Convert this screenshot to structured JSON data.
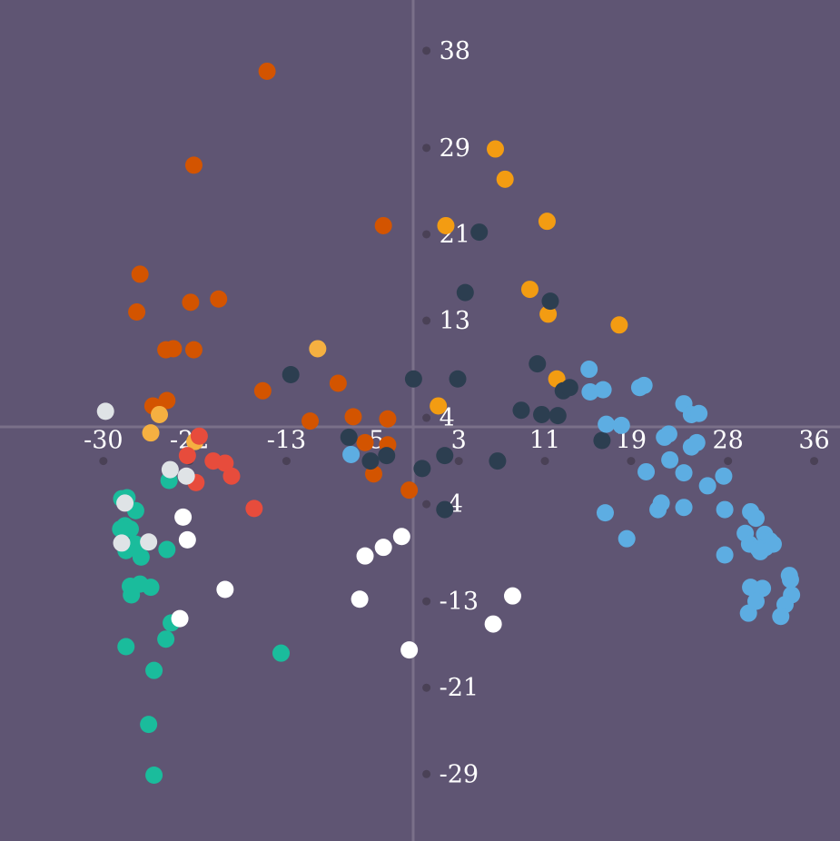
{
  "chart_data": {
    "type": "scatter",
    "title": "",
    "xlabel": "",
    "ylabel": "",
    "xlim": [
      -39.6,
      38.4
    ],
    "ylim": [
      -35.2,
      42.7
    ],
    "x_ticks": [
      -30,
      -22,
      -13,
      -5,
      3,
      11,
      19,
      28,
      36
    ],
    "y_ticks": [
      38,
      29,
      21,
      13,
      4,
      -4,
      -13,
      -21,
      -29
    ],
    "x_tick_labels": [
      "-30",
      "-22",
      "-13",
      "-5",
      "3",
      "11",
      "19",
      "28",
      "36"
    ],
    "y_tick_labels": [
      "38",
      "29",
      "21",
      "13",
      "4",
      "-4",
      "-13",
      "-21",
      "-29"
    ],
    "grid": false,
    "legend": "none",
    "background": "#5f5573",
    "series": [
      {
        "color": "#d35400",
        "points": [
          [
            -14.8,
            36.1
          ],
          [
            -21.6,
            27.4
          ],
          [
            -4.0,
            21.8
          ],
          [
            -26.6,
            17.3
          ],
          [
            -21.9,
            14.7
          ],
          [
            -26.9,
            13.8
          ],
          [
            -19.3,
            15.0
          ],
          [
            -23.5,
            10.4
          ],
          [
            -24.2,
            10.3
          ],
          [
            -21.6,
            10.3
          ],
          [
            -24.1,
            5.6
          ],
          [
            -25.4,
            5.1
          ],
          [
            -15.2,
            6.5
          ],
          [
            -8.2,
            7.2
          ],
          [
            -10.8,
            3.7
          ],
          [
            -6.8,
            4.1
          ],
          [
            -3.6,
            3.9
          ],
          [
            -5.7,
            1.7
          ],
          [
            -3.6,
            1.5
          ],
          [
            -4.9,
            -1.2
          ],
          [
            -1.6,
            -2.7
          ]
        ]
      },
      {
        "color": "#f39c12",
        "points": [
          [
            6.4,
            28.9
          ],
          [
            7.3,
            26.1
          ],
          [
            11.2,
            22.2
          ],
          [
            1.8,
            21.8
          ],
          [
            9.6,
            15.9
          ],
          [
            11.3,
            13.6
          ],
          [
            17.9,
            12.6
          ],
          [
            12.1,
            7.6
          ],
          [
            1.1,
            5.1
          ]
        ]
      },
      {
        "color": "#f5b041",
        "points": [
          [
            -10.1,
            10.4
          ],
          [
            -24.8,
            4.3
          ],
          [
            -25.6,
            2.6
          ],
          [
            -21.5,
            1.8
          ]
        ]
      },
      {
        "color": "#2c3e50",
        "points": [
          [
            4.9,
            21.2
          ],
          [
            3.6,
            15.6
          ],
          [
            11.5,
            14.8
          ],
          [
            -12.6,
            8.0
          ],
          [
            -1.2,
            7.6
          ],
          [
            2.9,
            7.6
          ],
          [
            10.3,
            9.0
          ],
          [
            12.7,
            6.5
          ],
          [
            13.3,
            6.8
          ],
          [
            8.8,
            4.7
          ],
          [
            10.7,
            4.3
          ],
          [
            12.2,
            4.2
          ],
          [
            16.3,
            1.9
          ],
          [
            -7.2,
            2.2
          ],
          [
            -5.2,
            0.0
          ],
          [
            -3.7,
            0.5
          ],
          [
            -0.4,
            -0.7
          ],
          [
            1.7,
            0.5
          ],
          [
            6.6,
            0.0
          ],
          [
            1.7,
            -4.5
          ]
        ]
      },
      {
        "color": "#5dade2",
        "points": [
          [
            15.1,
            8.5
          ],
          [
            15.2,
            6.4
          ],
          [
            16.4,
            6.6
          ],
          [
            19.8,
            6.8
          ],
          [
            20.2,
            7.0
          ],
          [
            23.9,
            5.3
          ],
          [
            24.6,
            4.3
          ],
          [
            25.3,
            4.4
          ],
          [
            16.7,
            3.4
          ],
          [
            18.1,
            3.3
          ],
          [
            22.1,
            2.2
          ],
          [
            22.5,
            2.5
          ],
          [
            24.6,
            1.3
          ],
          [
            25.1,
            1.7
          ],
          [
            -7.0,
            0.6
          ],
          [
            20.4,
            -1.0
          ],
          [
            22.6,
            0.1
          ],
          [
            23.9,
            -1.1
          ],
          [
            26.1,
            -2.3
          ],
          [
            27.6,
            -1.4
          ],
          [
            21.8,
            -3.9
          ],
          [
            21.5,
            -4.5
          ],
          [
            23.9,
            -4.3
          ],
          [
            16.6,
            -4.8
          ],
          [
            18.6,
            -7.2
          ],
          [
            27.7,
            -8.7
          ],
          [
            27.7,
            -4.5
          ],
          [
            30.1,
            -4.7
          ],
          [
            30.6,
            -5.3
          ],
          [
            29.6,
            -6.7
          ],
          [
            31.4,
            -6.8
          ],
          [
            31.9,
            -7.4
          ],
          [
            30.0,
            -7.7
          ],
          [
            31.5,
            -8.0
          ],
          [
            30.8,
            -8.1
          ],
          [
            32.2,
            -7.7
          ],
          [
            31.0,
            -8.4
          ],
          [
            30.1,
            -11.7
          ],
          [
            31.2,
            -11.8
          ],
          [
            33.7,
            -10.6
          ],
          [
            33.8,
            -11.0
          ],
          [
            33.9,
            -12.4
          ],
          [
            30.6,
            -13.0
          ],
          [
            33.3,
            -13.3
          ],
          [
            32.9,
            -14.4
          ],
          [
            29.9,
            -14.1
          ]
        ]
      },
      {
        "color": "#e74c3c",
        "points": [
          [
            -21.1,
            2.3
          ],
          [
            -22.2,
            0.5
          ],
          [
            -19.8,
            0.0
          ],
          [
            -18.7,
            -0.2
          ],
          [
            -18.1,
            -1.4
          ],
          [
            -21.4,
            -2.0
          ],
          [
            -16.0,
            -4.4
          ]
        ]
      },
      {
        "color": "#1abc9c",
        "points": [
          [
            -28.3,
            -3.5
          ],
          [
            -27.8,
            -3.4
          ],
          [
            -23.9,
            -1.8
          ],
          [
            -27.0,
            -4.6
          ],
          [
            -28.0,
            -6.0
          ],
          [
            -27.5,
            -6.3
          ],
          [
            -28.4,
            -6.3
          ],
          [
            -27.0,
            -7.7
          ],
          [
            -27.9,
            -8.3
          ],
          [
            -24.1,
            -8.2
          ],
          [
            -26.5,
            -8.9
          ],
          [
            -27.5,
            -11.6
          ],
          [
            -26.6,
            -11.4
          ],
          [
            -25.6,
            -11.7
          ],
          [
            -27.4,
            -12.4
          ],
          [
            -23.7,
            -15.0
          ],
          [
            -24.2,
            -16.5
          ],
          [
            -27.9,
            -17.2
          ],
          [
            -13.5,
            -17.8
          ],
          [
            -25.3,
            -19.4
          ],
          [
            -25.8,
            -24.4
          ],
          [
            -25.3,
            -29.1
          ]
        ]
      },
      {
        "color": "#dfe3e6",
        "points": [
          [
            -29.8,
            4.6
          ],
          [
            -23.8,
            -0.8
          ],
          [
            -22.3,
            -1.4
          ],
          [
            -28.0,
            -3.9
          ],
          [
            -28.3,
            -7.6
          ],
          [
            -25.8,
            -7.5
          ]
        ]
      },
      {
        "color": "#ffffff",
        "points": [
          [
            -22.6,
            -5.2
          ],
          [
            -22.2,
            -7.3
          ],
          [
            -2.3,
            -7.0
          ],
          [
            -4.0,
            -8.0
          ],
          [
            -5.7,
            -8.8
          ],
          [
            -18.7,
            -11.9
          ],
          [
            -22.9,
            -14.6
          ],
          [
            -6.2,
            -12.8
          ],
          [
            8.0,
            -12.5
          ],
          [
            6.2,
            -15.1
          ],
          [
            -1.6,
            -17.5
          ]
        ]
      }
    ]
  }
}
